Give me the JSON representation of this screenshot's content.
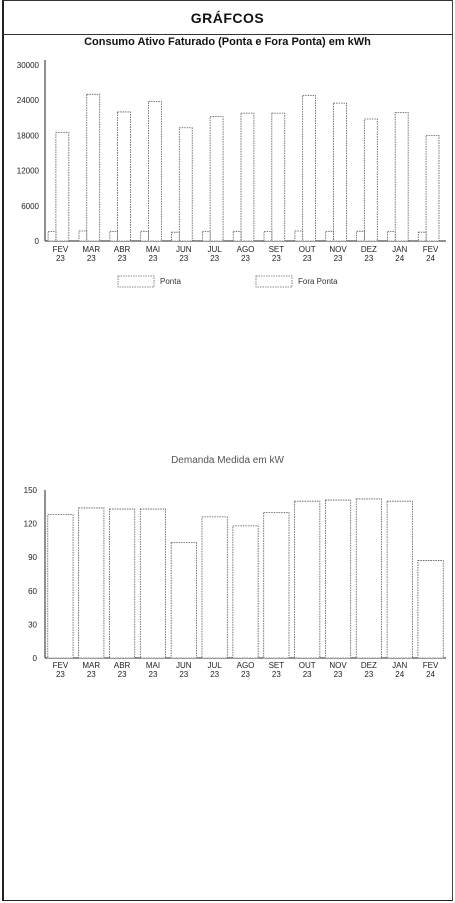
{
  "header": {
    "title": "GRÁFCOS"
  },
  "chart_data": [
    {
      "type": "bar",
      "title": "Consumo Ativo Faturado (Ponta e Fora Ponta) em kWh",
      "categories": [
        "FEV 23",
        "MAR 23",
        "ABR 23",
        "MAI 23",
        "JUN 23",
        "JUL 23",
        "AGO 23",
        "SET 23",
        "OUT 23",
        "NOV 23",
        "DEZ 23",
        "JAN 24",
        "FEV 24"
      ],
      "series": [
        {
          "name": "Ponta",
          "values": [
            1600,
            1700,
            1650,
            1650,
            1500,
            1600,
            1600,
            1600,
            1700,
            1650,
            1650,
            1600,
            1500
          ]
        },
        {
          "name": "Fora Ponta",
          "values": [
            18500,
            25000,
            22000,
            23800,
            19300,
            21200,
            21800,
            21800,
            24800,
            23500,
            20800,
            21900,
            18000
          ]
        }
      ],
      "yticks": [
        "0",
        "6000",
        "12000",
        "18000",
        "24000",
        "30000"
      ],
      "ylim": [
        0,
        30000
      ]
    },
    {
      "type": "bar",
      "title": "Demanda Medida em kW",
      "categories": [
        "FEV 23",
        "MAR 23",
        "ABR 23",
        "MAI 23",
        "JUN 23",
        "JUL 23",
        "AGO 23",
        "SET 23",
        "OUT 23",
        "NOV 23",
        "DEZ 23",
        "JAN 24",
        "FEV 24"
      ],
      "series": [
        {
          "name": "",
          "values": [
            128,
            134,
            133,
            133,
            103,
            126,
            118,
            130,
            140,
            141,
            142,
            140,
            87
          ]
        }
      ],
      "yticks": [
        "0",
        "30",
        "60",
        "90",
        "120",
        "150"
      ],
      "ylim": [
        0,
        150
      ]
    }
  ]
}
